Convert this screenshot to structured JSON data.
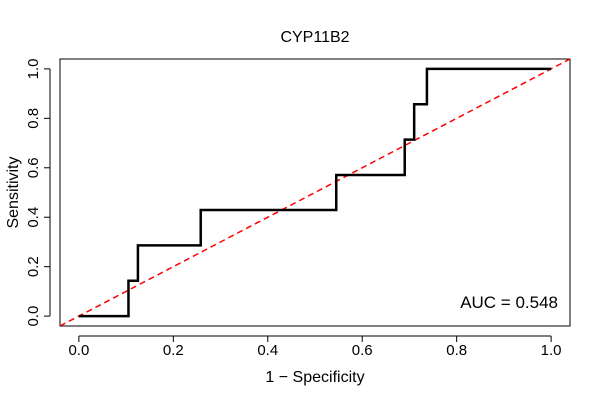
{
  "chart_data": {
    "type": "line",
    "title": "CYP11B2",
    "xlabel": "1 − Specificity",
    "ylabel": "Sensitivity",
    "xlim": [
      -0.04,
      1.04
    ],
    "ylim": [
      -0.04,
      1.04
    ],
    "x_ticks": [
      0.0,
      0.2,
      0.4,
      0.6,
      0.8,
      1.0
    ],
    "x_tick_labels": [
      "0.0",
      "0.2",
      "0.4",
      "0.6",
      "0.8",
      "1.0"
    ],
    "y_ticks": [
      0.0,
      0.2,
      0.4,
      0.6,
      0.8,
      1.0
    ],
    "y_tick_labels": [
      "0.0",
      "0.2",
      "0.4",
      "0.6",
      "0.8",
      "1.0"
    ],
    "grid": false,
    "annotation": "AUC = 0.548",
    "series": [
      {
        "style": "solid",
        "color": "#000000",
        "points": [
          [
            0.0,
            0.0
          ],
          [
            0.105,
            0.0
          ],
          [
            0.105,
            0.143
          ],
          [
            0.125,
            0.143
          ],
          [
            0.125,
            0.286
          ],
          [
            0.258,
            0.286
          ],
          [
            0.258,
            0.429
          ],
          [
            0.545,
            0.429
          ],
          [
            0.545,
            0.571
          ],
          [
            0.69,
            0.571
          ],
          [
            0.69,
            0.714
          ],
          [
            0.71,
            0.714
          ],
          [
            0.71,
            0.857
          ],
          [
            0.737,
            0.857
          ],
          [
            0.737,
            1.0
          ],
          [
            1.0,
            1.0
          ]
        ]
      },
      {
        "style": "dashed",
        "color": "#ff0000",
        "points": [
          [
            -0.04,
            -0.04
          ],
          [
            1.04,
            1.04
          ]
        ]
      }
    ]
  }
}
